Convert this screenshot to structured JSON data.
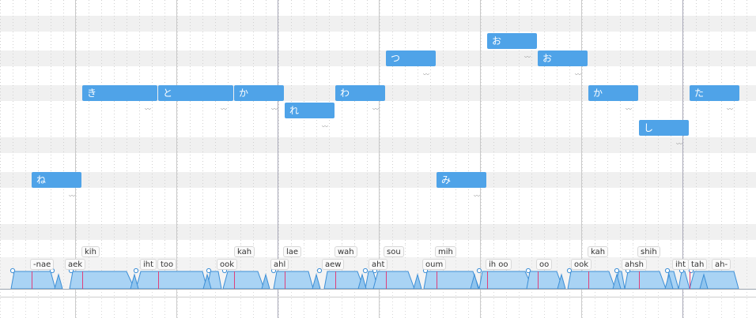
{
  "notes": [
    {
      "lyric": "ね"
    },
    {
      "lyric": "き"
    },
    {
      "lyric": "と"
    },
    {
      "lyric": "か"
    },
    {
      "lyric": "れ"
    },
    {
      "lyric": "わ"
    },
    {
      "lyric": "つ"
    },
    {
      "lyric": "み"
    },
    {
      "lyric": "お"
    },
    {
      "lyric": "お"
    },
    {
      "lyric": "か"
    },
    {
      "lyric": "し"
    },
    {
      "lyric": "た"
    }
  ],
  "vibrato_icon": "vibrato-icon",
  "phonemes": [
    {
      "text": "-nae"
    },
    {
      "text": "aek"
    },
    {
      "text": "kih"
    },
    {
      "text": "iht"
    },
    {
      "text": "too"
    },
    {
      "text": "ook"
    },
    {
      "text": "kah"
    },
    {
      "text": "ahl"
    },
    {
      "text": "lae"
    },
    {
      "text": "aew"
    },
    {
      "text": "wah"
    },
    {
      "text": "aht"
    },
    {
      "text": "sou"
    },
    {
      "text": "oum"
    },
    {
      "text": "mih"
    },
    {
      "text": "ih oo"
    },
    {
      "text": "oo"
    },
    {
      "text": "ook"
    },
    {
      "text": "kah"
    },
    {
      "text": "ahsh"
    },
    {
      "text": "shih"
    },
    {
      "text": "iht"
    },
    {
      "text": "tah"
    },
    {
      "text": "ah-"
    }
  ],
  "colors": {
    "note": "#4fa3e8",
    "row_stripe": "#f0f0f0",
    "envelope_fill": "#a9d3f4",
    "envelope_stroke": "#3d8fd6",
    "phoneme_marker": "#e0407a"
  }
}
